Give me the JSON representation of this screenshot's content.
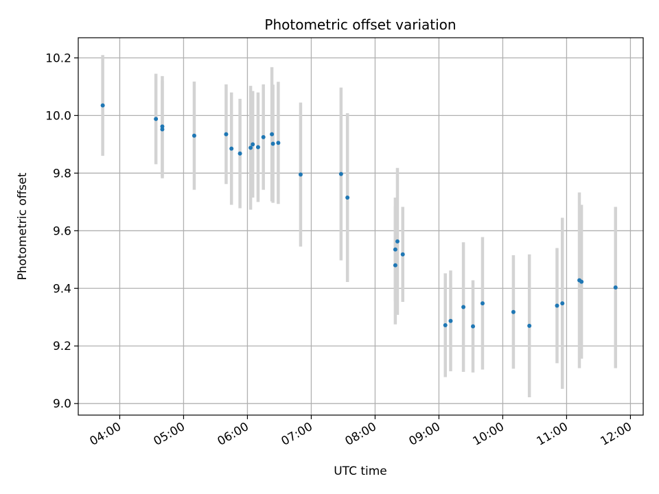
{
  "chart_data": {
    "type": "scatter",
    "title": "Photometric offset variation",
    "xlabel": "UTC time",
    "ylabel": "Photometric offset",
    "grid": true,
    "legend": "none",
    "xlim": [
      "03:21",
      "12:12"
    ],
    "ylim": [
      8.96,
      10.27
    ],
    "x_ticks": [
      "04:00",
      "05:00",
      "06:00",
      "07:00",
      "08:00",
      "09:00",
      "10:00",
      "11:00",
      "12:00"
    ],
    "y_ticks": [
      9.0,
      9.2,
      9.4,
      9.6,
      9.8,
      10.0,
      10.2
    ],
    "colors": {
      "point": "#1f77b4",
      "errorbar": "#d3d3d3",
      "grid": "#b0b0b0"
    },
    "points": [
      {
        "x": "03:44",
        "y": 10.035,
        "err": 0.175
      },
      {
        "x": "04:34",
        "y": 9.988,
        "err": 0.157
      },
      {
        "x": "04:40",
        "y": 9.962,
        "err": 0.175
      },
      {
        "x": "04:40",
        "y": 9.952,
        "err": 0.17
      },
      {
        "x": "05:10",
        "y": 9.93,
        "err": 0.188
      },
      {
        "x": "05:40",
        "y": 9.935,
        "err": 0.173
      },
      {
        "x": "05:45",
        "y": 9.885,
        "err": 0.195
      },
      {
        "x": "05:53",
        "y": 9.868,
        "err": 0.19
      },
      {
        "x": "06:03",
        "y": 9.888,
        "err": 0.215
      },
      {
        "x": "06:05",
        "y": 9.9,
        "err": 0.185
      },
      {
        "x": "06:10",
        "y": 9.89,
        "err": 0.19
      },
      {
        "x": "06:15",
        "y": 9.925,
        "err": 0.183
      },
      {
        "x": "06:23",
        "y": 9.935,
        "err": 0.233
      },
      {
        "x": "06:24",
        "y": 9.902,
        "err": 0.205
      },
      {
        "x": "06:29",
        "y": 9.905,
        "err": 0.212
      },
      {
        "x": "06:50",
        "y": 9.795,
        "err": 0.25
      },
      {
        "x": "07:28",
        "y": 9.797,
        "err": 0.3
      },
      {
        "x": "07:34",
        "y": 9.715,
        "err": 0.293
      },
      {
        "x": "08:19",
        "y": 9.535,
        "err": 0.18
      },
      {
        "x": "08:19",
        "y": 9.48,
        "err": 0.205
      },
      {
        "x": "08:21",
        "y": 9.563,
        "err": 0.255
      },
      {
        "x": "08:26",
        "y": 9.518,
        "err": 0.165
      },
      {
        "x": "09:06",
        "y": 9.272,
        "err": 0.18
      },
      {
        "x": "09:11",
        "y": 9.287,
        "err": 0.175
      },
      {
        "x": "09:23",
        "y": 9.335,
        "err": 0.225
      },
      {
        "x": "09:32",
        "y": 9.268,
        "err": 0.16
      },
      {
        "x": "09:41",
        "y": 9.348,
        "err": 0.23
      },
      {
        "x": "10:10",
        "y": 9.318,
        "err": 0.197
      },
      {
        "x": "10:25",
        "y": 9.27,
        "err": 0.248
      },
      {
        "x": "10:51",
        "y": 9.34,
        "err": 0.2
      },
      {
        "x": "10:56",
        "y": 9.348,
        "err": 0.297
      },
      {
        "x": "11:12",
        "y": 9.428,
        "err": 0.305
      },
      {
        "x": "11:14",
        "y": 9.423,
        "err": 0.267
      },
      {
        "x": "11:46",
        "y": 9.403,
        "err": 0.28
      }
    ]
  }
}
